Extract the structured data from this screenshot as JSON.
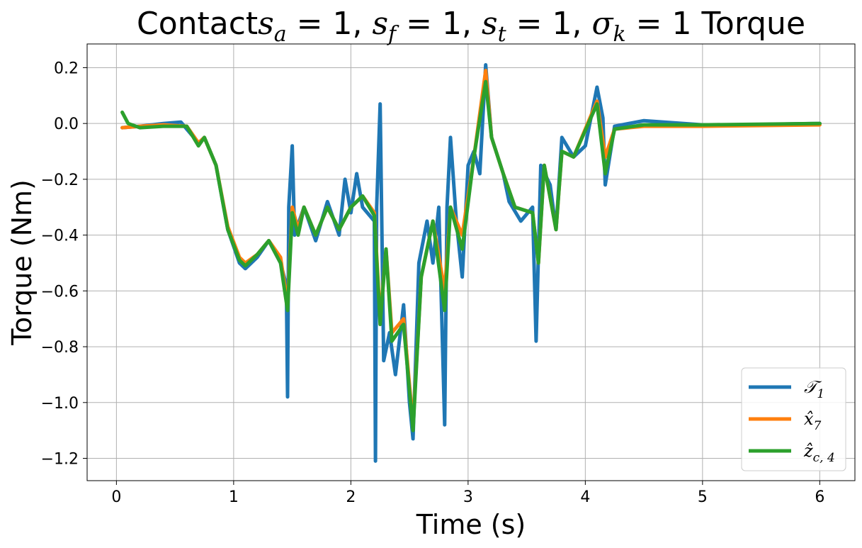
{
  "chart_data": {
    "type": "line",
    "title": "Contacts_a = 1, s_f = 1, s_t = 1, σ_k = 1 Torque",
    "title_parts": {
      "prefix": "Contact",
      "s1": "s",
      "s1_sub": "a",
      "eq1": " = 1, ",
      "s2": "s",
      "s2_sub": "f",
      "eq2": " = 1, ",
      "s3": "s",
      "s3_sub": "t",
      "eq3": " = 1, ",
      "s4": "σ",
      "s4_sub": "k",
      "eq4": " = 1 Torque"
    },
    "xlabel": "Time (s)",
    "ylabel": "Torque (Nm)",
    "xlim": [
      -0.25,
      6.3
    ],
    "ylim": [
      -1.28,
      0.285
    ],
    "xticks": [
      0,
      1,
      2,
      3,
      4,
      5,
      6
    ],
    "xtick_labels": [
      "0",
      "1",
      "2",
      "3",
      "4",
      "5",
      "6"
    ],
    "yticks": [
      0.2,
      0.0,
      -0.2,
      -0.4,
      -0.6,
      -0.8,
      -1.0,
      -1.2
    ],
    "ytick_labels": [
      "0.2",
      "0.0",
      "−0.2",
      "−0.4",
      "−0.6",
      "−0.8",
      "−1.0",
      "−1.2"
    ],
    "grid": true,
    "legend_position": "bottom-right",
    "series": [
      {
        "name": "𝒯₁",
        "label_main": "𝒯",
        "label_sub": "1",
        "color": "#1f77b4",
        "points": [
          [
            0.05,
            -0.015
          ],
          [
            0.2,
            -0.01
          ],
          [
            0.4,
            0.0
          ],
          [
            0.55,
            0.005
          ],
          [
            0.6,
            -0.02
          ],
          [
            0.7,
            -0.07
          ],
          [
            0.75,
            -0.05
          ],
          [
            0.85,
            -0.15
          ],
          [
            0.95,
            -0.38
          ],
          [
            1.05,
            -0.5
          ],
          [
            1.1,
            -0.52
          ],
          [
            1.2,
            -0.48
          ],
          [
            1.3,
            -0.42
          ],
          [
            1.4,
            -0.5
          ],
          [
            1.45,
            -0.58
          ],
          [
            1.46,
            -0.98
          ],
          [
            1.47,
            -0.3
          ],
          [
            1.5,
            -0.08
          ],
          [
            1.52,
            -0.4
          ],
          [
            1.6,
            -0.3
          ],
          [
            1.7,
            -0.42
          ],
          [
            1.8,
            -0.28
          ],
          [
            1.9,
            -0.4
          ],
          [
            1.95,
            -0.2
          ],
          [
            2.0,
            -0.32
          ],
          [
            2.05,
            -0.18
          ],
          [
            2.1,
            -0.3
          ],
          [
            2.2,
            -0.35
          ],
          [
            2.21,
            -1.21
          ],
          [
            2.22,
            -0.3
          ],
          [
            2.25,
            0.07
          ],
          [
            2.28,
            -0.85
          ],
          [
            2.33,
            -0.75
          ],
          [
            2.38,
            -0.9
          ],
          [
            2.45,
            -0.65
          ],
          [
            2.5,
            -1.0
          ],
          [
            2.53,
            -1.13
          ],
          [
            2.58,
            -0.5
          ],
          [
            2.65,
            -0.35
          ],
          [
            2.7,
            -0.5
          ],
          [
            2.75,
            -0.3
          ],
          [
            2.8,
            -1.08
          ],
          [
            2.82,
            -0.3
          ],
          [
            2.85,
            -0.05
          ],
          [
            2.9,
            -0.35
          ],
          [
            2.95,
            -0.55
          ],
          [
            3.0,
            -0.15
          ],
          [
            3.05,
            -0.1
          ],
          [
            3.1,
            -0.18
          ],
          [
            3.15,
            0.21
          ],
          [
            3.2,
            -0.05
          ],
          [
            3.3,
            -0.18
          ],
          [
            3.35,
            -0.28
          ],
          [
            3.45,
            -0.35
          ],
          [
            3.55,
            -0.3
          ],
          [
            3.58,
            -0.78
          ],
          [
            3.62,
            -0.15
          ],
          [
            3.7,
            -0.22
          ],
          [
            3.75,
            -0.38
          ],
          [
            3.8,
            -0.05
          ],
          [
            3.9,
            -0.12
          ],
          [
            4.0,
            -0.08
          ],
          [
            4.1,
            0.13
          ],
          [
            4.15,
            0.02
          ],
          [
            4.17,
            -0.22
          ],
          [
            4.25,
            -0.01
          ],
          [
            4.5,
            0.01
          ],
          [
            5.0,
            -0.005
          ],
          [
            5.3,
            -0.005
          ],
          [
            6.0,
            0.0
          ]
        ]
      },
      {
        "name": "x̂₇",
        "label_main": "x̂",
        "label_sub": "7",
        "color": "#ff7f0e",
        "points": [
          [
            0.05,
            -0.015
          ],
          [
            0.2,
            -0.01
          ],
          [
            0.4,
            -0.005
          ],
          [
            0.6,
            -0.01
          ],
          [
            0.7,
            -0.07
          ],
          [
            0.75,
            -0.05
          ],
          [
            0.85,
            -0.15
          ],
          [
            0.95,
            -0.37
          ],
          [
            1.05,
            -0.48
          ],
          [
            1.1,
            -0.5
          ],
          [
            1.2,
            -0.47
          ],
          [
            1.3,
            -0.42
          ],
          [
            1.4,
            -0.48
          ],
          [
            1.46,
            -0.65
          ],
          [
            1.5,
            -0.3
          ],
          [
            1.55,
            -0.38
          ],
          [
            1.6,
            -0.3
          ],
          [
            1.7,
            -0.4
          ],
          [
            1.8,
            -0.3
          ],
          [
            1.9,
            -0.38
          ],
          [
            2.0,
            -0.3
          ],
          [
            2.1,
            -0.26
          ],
          [
            2.2,
            -0.32
          ],
          [
            2.25,
            -0.7
          ],
          [
            2.3,
            -0.45
          ],
          [
            2.35,
            -0.75
          ],
          [
            2.45,
            -0.7
          ],
          [
            2.53,
            -1.08
          ],
          [
            2.6,
            -0.55
          ],
          [
            2.7,
            -0.35
          ],
          [
            2.8,
            -0.6
          ],
          [
            2.85,
            -0.3
          ],
          [
            2.95,
            -0.4
          ],
          [
            3.05,
            -0.12
          ],
          [
            3.15,
            0.19
          ],
          [
            3.2,
            -0.05
          ],
          [
            3.3,
            -0.18
          ],
          [
            3.4,
            -0.3
          ],
          [
            3.55,
            -0.32
          ],
          [
            3.6,
            -0.5
          ],
          [
            3.65,
            -0.15
          ],
          [
            3.75,
            -0.38
          ],
          [
            3.8,
            -0.1
          ],
          [
            3.9,
            -0.12
          ],
          [
            4.1,
            0.08
          ],
          [
            4.17,
            -0.12
          ],
          [
            4.25,
            -0.02
          ],
          [
            4.5,
            -0.01
          ],
          [
            5.0,
            -0.01
          ],
          [
            6.0,
            -0.005
          ]
        ]
      },
      {
        "name": "ẑ_{c,4}",
        "label_main": "ẑ",
        "label_sub": "c, 4",
        "color": "#2ca02c",
        "points": [
          [
            0.05,
            0.04
          ],
          [
            0.1,
            0.0
          ],
          [
            0.2,
            -0.015
          ],
          [
            0.4,
            -0.01
          ],
          [
            0.6,
            -0.01
          ],
          [
            0.7,
            -0.08
          ],
          [
            0.75,
            -0.05
          ],
          [
            0.85,
            -0.15
          ],
          [
            0.95,
            -0.38
          ],
          [
            1.05,
            -0.49
          ],
          [
            1.1,
            -0.51
          ],
          [
            1.2,
            -0.47
          ],
          [
            1.3,
            -0.42
          ],
          [
            1.4,
            -0.5
          ],
          [
            1.46,
            -0.67
          ],
          [
            1.5,
            -0.32
          ],
          [
            1.55,
            -0.4
          ],
          [
            1.6,
            -0.3
          ],
          [
            1.7,
            -0.4
          ],
          [
            1.8,
            -0.3
          ],
          [
            1.9,
            -0.38
          ],
          [
            2.0,
            -0.3
          ],
          [
            2.1,
            -0.26
          ],
          [
            2.2,
            -0.33
          ],
          [
            2.25,
            -0.72
          ],
          [
            2.3,
            -0.45
          ],
          [
            2.35,
            -0.78
          ],
          [
            2.45,
            -0.72
          ],
          [
            2.53,
            -1.1
          ],
          [
            2.6,
            -0.55
          ],
          [
            2.7,
            -0.35
          ],
          [
            2.8,
            -0.67
          ],
          [
            2.85,
            -0.3
          ],
          [
            2.95,
            -0.45
          ],
          [
            3.05,
            -0.12
          ],
          [
            3.15,
            0.15
          ],
          [
            3.2,
            -0.05
          ],
          [
            3.3,
            -0.18
          ],
          [
            3.4,
            -0.3
          ],
          [
            3.55,
            -0.32
          ],
          [
            3.6,
            -0.5
          ],
          [
            3.65,
            -0.15
          ],
          [
            3.75,
            -0.38
          ],
          [
            3.8,
            -0.1
          ],
          [
            3.9,
            -0.12
          ],
          [
            4.1,
            0.07
          ],
          [
            4.17,
            -0.18
          ],
          [
            4.25,
            -0.02
          ],
          [
            4.5,
            -0.005
          ],
          [
            5.0,
            -0.005
          ],
          [
            6.0,
            0.0
          ]
        ]
      }
    ]
  }
}
